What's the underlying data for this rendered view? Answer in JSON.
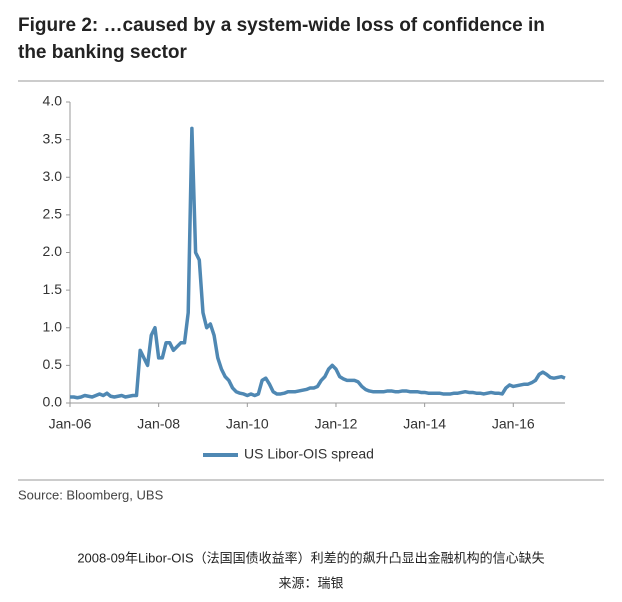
{
  "chart_data": {
    "type": "line",
    "title": "Figure 2: …caused by a system-wide loss of confidence in the banking sector",
    "source": "Source:  Bloomberg, UBS",
    "caption": [
      "2008-09年Libor-OIS（法国国债收益率）利差的的飙升凸显出金融机构的信心缺失",
      "来源：瑞银"
    ],
    "x": [
      "2006-01",
      "2006-02",
      "2006-03",
      "2006-04",
      "2006-05",
      "2006-06",
      "2006-07",
      "2006-08",
      "2006-09",
      "2006-10",
      "2006-11",
      "2006-12",
      "2007-01",
      "2007-02",
      "2007-03",
      "2007-04",
      "2007-05",
      "2007-06",
      "2007-07",
      "2007-08",
      "2007-09",
      "2007-10",
      "2007-11",
      "2007-12",
      "2008-01",
      "2008-02",
      "2008-03",
      "2008-04",
      "2008-05",
      "2008-06",
      "2008-07",
      "2008-08",
      "2008-09",
      "2008-10",
      "2008-11",
      "2008-12",
      "2009-01",
      "2009-02",
      "2009-03",
      "2009-04",
      "2009-05",
      "2009-06",
      "2009-07",
      "2009-08",
      "2009-09",
      "2009-10",
      "2009-11",
      "2009-12",
      "2010-01",
      "2010-02",
      "2010-03",
      "2010-04",
      "2010-05",
      "2010-06",
      "2010-07",
      "2010-08",
      "2010-09",
      "2010-10",
      "2010-11",
      "2010-12",
      "2011-01",
      "2011-02",
      "2011-03",
      "2011-04",
      "2011-05",
      "2011-06",
      "2011-07",
      "2011-08",
      "2011-09",
      "2011-10",
      "2011-11",
      "2011-12",
      "2012-01",
      "2012-02",
      "2012-03",
      "2012-04",
      "2012-05",
      "2012-06",
      "2012-07",
      "2012-08",
      "2012-09",
      "2012-10",
      "2012-11",
      "2012-12",
      "2013-01",
      "2013-02",
      "2013-03",
      "2013-04",
      "2013-05",
      "2013-06",
      "2013-07",
      "2013-08",
      "2013-09",
      "2013-10",
      "2013-11",
      "2013-12",
      "2014-01",
      "2014-02",
      "2014-03",
      "2014-04",
      "2014-05",
      "2014-06",
      "2014-07",
      "2014-08",
      "2014-09",
      "2014-10",
      "2014-11",
      "2014-12",
      "2015-01",
      "2015-02",
      "2015-03",
      "2015-04",
      "2015-05",
      "2015-06",
      "2015-07",
      "2015-08",
      "2015-09",
      "2015-10",
      "2015-11",
      "2015-12",
      "2016-01",
      "2016-02",
      "2016-03",
      "2016-04",
      "2016-05",
      "2016-06",
      "2016-07",
      "2016-08",
      "2016-09",
      "2016-10",
      "2016-11",
      "2016-12",
      "2017-01",
      "2017-02",
      "2017-03"
    ],
    "series": [
      {
        "name": "US Libor-OIS spread",
        "color": "#4f88b3",
        "values": [
          0.08,
          0.08,
          0.07,
          0.08,
          0.1,
          0.09,
          0.08,
          0.1,
          0.12,
          0.1,
          0.13,
          0.09,
          0.08,
          0.09,
          0.1,
          0.08,
          0.09,
          0.1,
          0.1,
          0.7,
          0.6,
          0.5,
          0.9,
          1.0,
          0.6,
          0.6,
          0.8,
          0.8,
          0.7,
          0.75,
          0.8,
          0.8,
          1.2,
          3.65,
          2.0,
          1.9,
          1.2,
          1.0,
          1.05,
          0.9,
          0.6,
          0.45,
          0.35,
          0.3,
          0.2,
          0.15,
          0.13,
          0.12,
          0.1,
          0.12,
          0.1,
          0.12,
          0.3,
          0.33,
          0.25,
          0.15,
          0.12,
          0.12,
          0.13,
          0.15,
          0.15,
          0.15,
          0.16,
          0.17,
          0.18,
          0.2,
          0.2,
          0.22,
          0.3,
          0.35,
          0.45,
          0.5,
          0.45,
          0.35,
          0.32,
          0.3,
          0.3,
          0.3,
          0.28,
          0.22,
          0.18,
          0.16,
          0.15,
          0.15,
          0.15,
          0.15,
          0.16,
          0.16,
          0.15,
          0.15,
          0.16,
          0.16,
          0.15,
          0.15,
          0.15,
          0.14,
          0.14,
          0.13,
          0.13,
          0.13,
          0.13,
          0.12,
          0.12,
          0.12,
          0.13,
          0.13,
          0.14,
          0.15,
          0.14,
          0.14,
          0.13,
          0.13,
          0.12,
          0.13,
          0.14,
          0.13,
          0.13,
          0.12,
          0.2,
          0.24,
          0.22,
          0.23,
          0.24,
          0.25,
          0.25,
          0.27,
          0.3,
          0.38,
          0.41,
          0.38,
          0.34,
          0.33,
          0.34,
          0.35,
          0.33
        ]
      }
    ],
    "xlim": [
      "2006-01",
      "2017-03"
    ],
    "xticks": [
      {
        "value": "2006-01",
        "label": "Jan-06"
      },
      {
        "value": "2008-01",
        "label": "Jan-08"
      },
      {
        "value": "2010-01",
        "label": "Jan-10"
      },
      {
        "value": "2012-01",
        "label": "Jan-12"
      },
      {
        "value": "2014-01",
        "label": "Jan-14"
      },
      {
        "value": "2016-01",
        "label": "Jan-16"
      }
    ],
    "ylim": [
      0,
      4
    ],
    "yticks": [
      {
        "value": 0,
        "label": "0.0"
      },
      0.5,
      {
        "value": 1,
        "label": "1.0"
      },
      1.5,
      {
        "value": 2,
        "label": "2.0"
      },
      2.5,
      {
        "value": 3,
        "label": "3.0"
      },
      3.5,
      {
        "value": 4,
        "label": "4.0"
      }
    ],
    "grid": false
  }
}
